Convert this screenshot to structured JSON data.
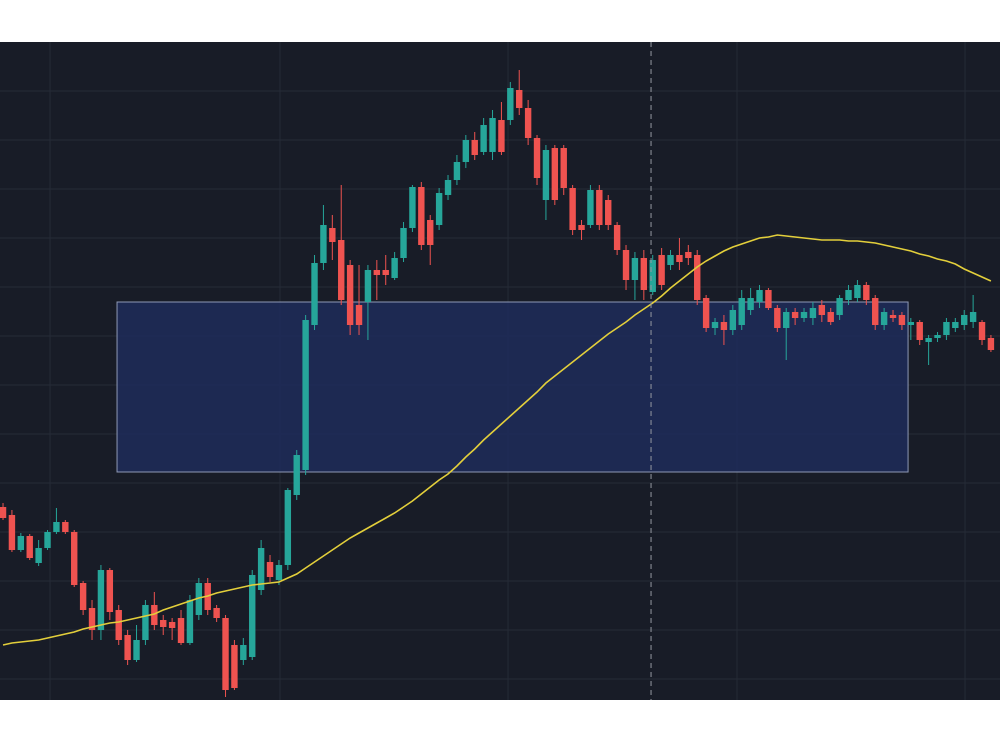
{
  "chart_data": {
    "type": "candlestick",
    "background": "#181c27",
    "grid": true,
    "grid_color": "#262b37",
    "up_color": "#26a69a",
    "down_color": "#ef5350",
    "ylim": [
      0,
      658
    ],
    "yticks": [
      21,
      70,
      119,
      168,
      217,
      266,
      315,
      364,
      413,
      462,
      511,
      560,
      609
    ],
    "xlim": [
      -0.34,
      112.02
    ],
    "xticks": [
      5.28,
      31.12,
      56.74,
      82.47,
      108.09
    ],
    "categories": [
      null,
      null,
      null,
      null,
      null,
      null,
      null,
      null,
      null,
      null,
      null,
      null,
      null,
      null,
      null,
      null,
      null,
      null,
      null,
      null,
      null,
      null,
      null,
      null,
      null,
      null,
      null,
      null,
      null,
      null,
      null,
      null,
      null,
      null,
      null,
      null,
      null,
      null,
      null,
      null,
      null,
      null,
      null,
      null,
      null,
      null,
      null,
      null,
      null,
      null,
      null,
      null,
      null,
      null,
      null,
      null,
      null,
      null,
      null,
      null,
      null,
      null,
      null,
      null,
      null,
      null,
      null,
      null,
      null,
      null,
      null,
      null,
      null,
      null,
      null,
      null,
      null,
      null,
      null,
      null,
      null,
      null,
      null,
      null,
      null,
      null,
      null,
      null,
      null,
      null,
      null,
      null,
      null,
      null,
      null,
      null,
      null,
      null,
      null,
      null,
      null,
      null,
      null,
      null,
      null,
      null,
      null,
      null,
      null,
      null,
      null,
      null
    ],
    "open": [
      193,
      185,
      150,
      164,
      137,
      152,
      168,
      178,
      168,
      117,
      92,
      70,
      130,
      90,
      65,
      40,
      60,
      95,
      80,
      78,
      82,
      57,
      85,
      117,
      92,
      82,
      55,
      40,
      43,
      110,
      138,
      120,
      135,
      205,
      230,
      375,
      437,
      472,
      460,
      435,
      395,
      398,
      430,
      430,
      422,
      442,
      472,
      513,
      480,
      475,
      505,
      520,
      538,
      560,
      548,
      548,
      580,
      580,
      610,
      592,
      562,
      500,
      552,
      552,
      512,
      475,
      475,
      510,
      500,
      475,
      450,
      420,
      442,
      408,
      445,
      435,
      445,
      448,
      445,
      402,
      372,
      378,
      370,
      375,
      390,
      398,
      410,
      392,
      372,
      388,
      382,
      382,
      395,
      388,
      385,
      400,
      402,
      415,
      402,
      375,
      385,
      385,
      375,
      378,
      358,
      362,
      365,
      372,
      375,
      378,
      378,
      362
    ],
    "high": [
      197,
      190,
      167,
      166,
      160,
      170,
      192,
      180,
      170,
      119,
      100,
      135,
      132,
      95,
      70,
      75,
      100,
      108,
      85,
      82,
      90,
      105,
      122,
      122,
      95,
      85,
      60,
      62,
      130,
      160,
      145,
      140,
      212,
      250,
      385,
      445,
      495,
      485,
      515,
      440,
      435,
      435,
      440,
      445,
      448,
      478,
      515,
      518,
      485,
      512,
      525,
      545,
      565,
      568,
      582,
      590,
      598,
      618,
      630,
      600,
      565,
      555,
      555,
      555,
      515,
      480,
      515,
      515,
      505,
      478,
      455,
      448,
      450,
      445,
      452,
      450,
      462,
      455,
      450,
      405,
      382,
      385,
      395,
      410,
      412,
      415,
      412,
      395,
      392,
      392,
      392,
      398,
      400,
      392,
      405,
      415,
      420,
      418,
      405,
      392,
      390,
      388,
      382,
      380,
      365,
      368,
      382,
      382,
      390,
      405,
      380,
      365
    ],
    "low": [
      180,
      148,
      148,
      140,
      134,
      150,
      166,
      166,
      113,
      85,
      60,
      60,
      80,
      55,
      35,
      38,
      55,
      70,
      65,
      60,
      55,
      55,
      80,
      85,
      78,
      3,
      10,
      35,
      40,
      105,
      118,
      115,
      130,
      200,
      225,
      370,
      430,
      440,
      395,
      365,
      365,
      360,
      400,
      415,
      420,
      438,
      468,
      450,
      435,
      470,
      500,
      515,
      532,
      540,
      545,
      540,
      545,
      575,
      585,
      555,
      515,
      480,
      495,
      505,
      465,
      460,
      472,
      470,
      470,
      445,
      410,
      400,
      400,
      405,
      410,
      430,
      430,
      435,
      395,
      368,
      365,
      355,
      365,
      370,
      385,
      392,
      390,
      368,
      340,
      375,
      378,
      375,
      378,
      375,
      380,
      395,
      398,
      395,
      370,
      370,
      378,
      370,
      360,
      355,
      335,
      358,
      360,
      368,
      370,
      372,
      355,
      348
    ],
    "close": [
      182,
      150,
      164,
      142,
      152,
      168,
      178,
      168,
      115,
      90,
      70,
      130,
      88,
      60,
      40,
      60,
      95,
      75,
      73,
      72,
      57,
      100,
      117,
      90,
      82,
      10,
      12,
      55,
      125,
      152,
      123,
      135,
      210,
      245,
      380,
      437,
      475,
      458,
      400,
      375,
      375,
      430,
      425,
      425,
      442,
      472,
      513,
      455,
      455,
      507,
      520,
      538,
      560,
      545,
      575,
      582,
      548,
      612,
      592,
      562,
      522,
      550,
      500,
      512,
      470,
      470,
      510,
      475,
      475,
      450,
      420,
      442,
      410,
      440,
      415,
      445,
      438,
      442,
      400,
      372,
      378,
      370,
      390,
      402,
      402,
      410,
      392,
      372,
      388,
      382,
      388,
      392,
      385,
      378,
      402,
      410,
      415,
      400,
      375,
      388,
      382,
      375,
      378,
      360,
      362,
      365,
      378,
      378,
      385,
      388,
      360,
      350
    ],
    "ma": {
      "color": "#e3cf3b",
      "values": [
        55,
        57,
        58,
        59,
        60,
        62,
        64,
        66,
        68,
        71,
        73,
        75,
        77,
        78,
        80,
        82,
        84,
        86,
        90,
        93,
        96,
        99,
        102,
        104,
        107,
        109,
        111,
        113,
        115,
        116,
        117,
        118,
        122,
        126,
        132,
        138,
        144,
        150,
        156,
        162,
        167,
        172,
        177,
        182,
        187,
        193,
        199,
        206,
        213,
        220,
        226,
        234,
        243,
        251,
        260,
        268,
        276,
        284,
        292,
        300,
        308,
        317,
        324,
        331,
        338,
        345,
        352,
        359,
        366,
        372,
        378,
        385,
        391,
        397,
        404,
        412,
        419,
        426,
        433,
        439,
        444,
        449,
        453,
        456,
        459,
        462,
        463,
        465,
        464,
        463,
        462,
        461,
        460,
        460,
        460,
        459,
        459,
        458,
        457,
        455,
        453,
        451,
        449,
        446,
        444,
        441,
        439,
        436,
        431,
        427,
        423,
        419
      ]
    },
    "zone": {
      "xlim": [
        12.81,
        101.69
      ],
      "ylim": [
        228,
        398
      ],
      "color": "#1e2b5a",
      "border": "#8e99b5"
    },
    "crosshair_x": 72.81
  }
}
